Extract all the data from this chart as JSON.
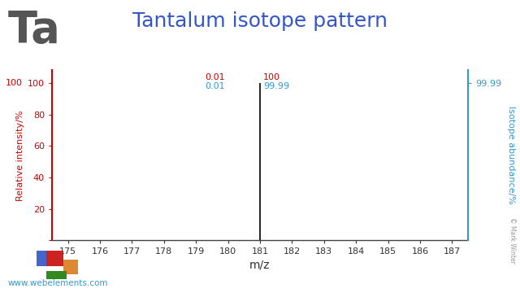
{
  "title": "Tantalum isotope pattern",
  "element_symbol": "Ta",
  "xlabel": "m/z",
  "ylabel_left": "Relative intensity/%",
  "ylabel_right": "Isotope abundance/%",
  "background_color": "#ffffff",
  "isotopes": [
    180,
    181
  ],
  "intensities": [
    0.01,
    100
  ],
  "abundances": [
    0.01,
    99.99
  ],
  "bar_color": "#2a2a2a",
  "xlim": [
    174.5,
    187.5
  ],
  "ylim": [
    0,
    108
  ],
  "xticks": [
    175,
    176,
    177,
    178,
    179,
    180,
    181,
    182,
    183,
    184,
    185,
    186,
    187
  ],
  "left_axis_color": "#cc0000",
  "right_axis_color": "#3399cc",
  "title_color": "#3355cc",
  "element_symbol_color": "#555555",
  "element_symbol_fontsize": 38,
  "title_fontsize": 18,
  "annotation_red": [
    [
      "0.01",
      180
    ],
    [
      "100",
      181
    ]
  ],
  "annotation_blue": [
    [
      "0.01",
      180
    ],
    [
      "99.99",
      181
    ]
  ],
  "website": "www.webelements.com",
  "copyright": "© Mark Winter",
  "periodic_table_colors": {
    "blue": "#4466cc",
    "red": "#cc2222",
    "orange": "#dd8833",
    "green": "#338822"
  }
}
